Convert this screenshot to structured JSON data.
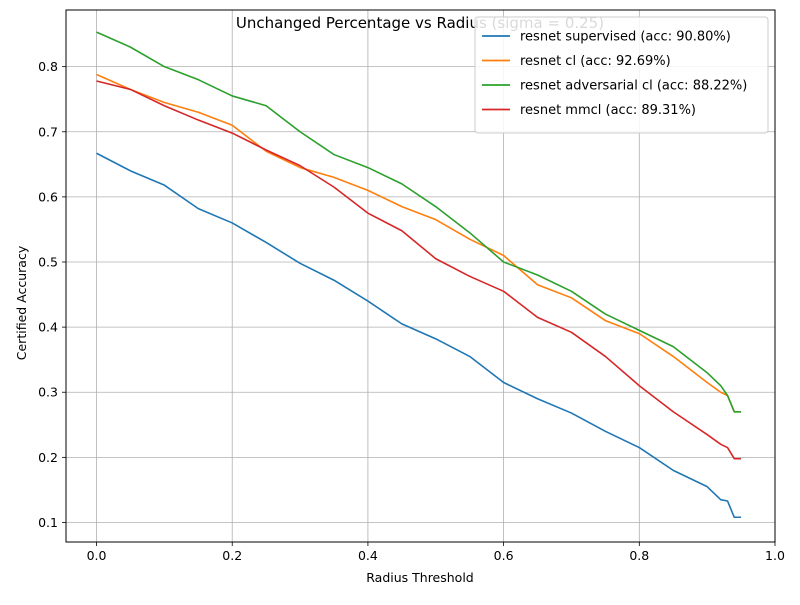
{
  "chart_data": {
    "type": "line",
    "title": "Unchanged Percentage vs Radius (sigma = 0.25)",
    "xlabel": "Radius Threshold",
    "ylabel": "Certified Accuracy",
    "xlim": [
      -0.045,
      1.0
    ],
    "ylim": [
      0.07,
      0.887
    ],
    "xticks": [
      0.0,
      0.2,
      0.4,
      0.6,
      0.8,
      1.0
    ],
    "xtick_labels": [
      "0.0",
      "0.2",
      "0.4",
      "0.6",
      "0.8",
      "1.0"
    ],
    "yticks": [
      0.1,
      0.2,
      0.3,
      0.4,
      0.5,
      0.6,
      0.7,
      0.8
    ],
    "ytick_labels": [
      "0.1",
      "0.2",
      "0.3",
      "0.4",
      "0.5",
      "0.6",
      "0.7",
      "0.8"
    ],
    "grid": true,
    "legend_position": "top-right",
    "series": [
      {
        "name": "resnet supervised (acc: 90.80%)",
        "color": "#1f77b4",
        "x": [
          0.0,
          0.05,
          0.1,
          0.15,
          0.2,
          0.25,
          0.3,
          0.35,
          0.4,
          0.45,
          0.5,
          0.55,
          0.6,
          0.65,
          0.7,
          0.75,
          0.8,
          0.85,
          0.9,
          0.92,
          0.93,
          0.94,
          0.95
        ],
        "y": [
          0.667,
          0.64,
          0.618,
          0.582,
          0.56,
          0.53,
          0.498,
          0.472,
          0.44,
          0.405,
          0.382,
          0.355,
          0.315,
          0.29,
          0.268,
          0.24,
          0.215,
          0.18,
          0.155,
          0.135,
          0.133,
          0.108,
          0.108
        ]
      },
      {
        "name": "resnet cl (acc: 92.69%)",
        "color": "#ff7f0e",
        "x": [
          0.0,
          0.05,
          0.1,
          0.15,
          0.2,
          0.25,
          0.3,
          0.35,
          0.4,
          0.45,
          0.5,
          0.55,
          0.6,
          0.65,
          0.7,
          0.75,
          0.8,
          0.85,
          0.9,
          0.92,
          0.93,
          0.94,
          0.95
        ],
        "y": [
          0.788,
          0.765,
          0.745,
          0.73,
          0.71,
          0.67,
          0.645,
          0.63,
          0.61,
          0.585,
          0.565,
          0.535,
          0.51,
          0.465,
          0.445,
          0.41,
          0.39,
          0.355,
          0.315,
          0.3,
          0.295,
          0.27,
          0.27
        ]
      },
      {
        "name": "resnet adversarial cl (acc: 88.22%)",
        "color": "#2ca02c",
        "x": [
          0.0,
          0.05,
          0.1,
          0.15,
          0.2,
          0.25,
          0.3,
          0.35,
          0.4,
          0.45,
          0.5,
          0.55,
          0.6,
          0.65,
          0.7,
          0.75,
          0.8,
          0.85,
          0.9,
          0.92,
          0.93,
          0.94,
          0.95
        ],
        "y": [
          0.853,
          0.83,
          0.8,
          0.78,
          0.755,
          0.74,
          0.7,
          0.665,
          0.645,
          0.62,
          0.585,
          0.545,
          0.5,
          0.48,
          0.455,
          0.42,
          0.395,
          0.37,
          0.33,
          0.31,
          0.295,
          0.27,
          0.27
        ]
      },
      {
        "name": "resnet mmcl (acc: 89.31%)",
        "color": "#d62728",
        "x": [
          0.0,
          0.05,
          0.1,
          0.15,
          0.2,
          0.25,
          0.3,
          0.35,
          0.4,
          0.45,
          0.5,
          0.55,
          0.6,
          0.65,
          0.7,
          0.75,
          0.8,
          0.85,
          0.9,
          0.92,
          0.93,
          0.94,
          0.95
        ],
        "y": [
          0.778,
          0.765,
          0.74,
          0.718,
          0.698,
          0.672,
          0.648,
          0.615,
          0.575,
          0.548,
          0.505,
          0.478,
          0.455,
          0.415,
          0.392,
          0.355,
          0.31,
          0.27,
          0.235,
          0.22,
          0.215,
          0.198,
          0.198
        ]
      }
    ]
  }
}
